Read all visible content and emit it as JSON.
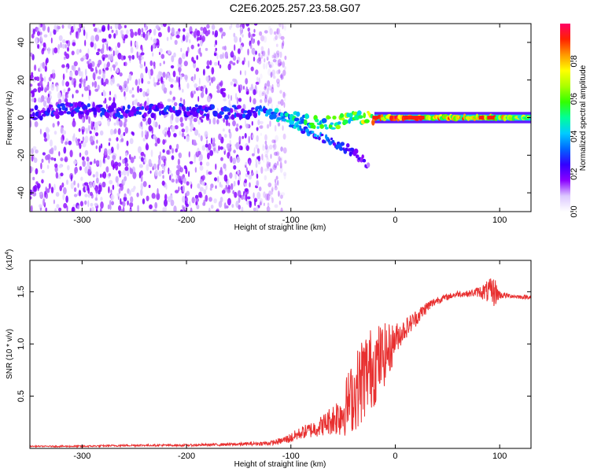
{
  "figure_title": "C2E6.2025.257.23.58.G07",
  "chart_data": [
    {
      "type": "heatmap",
      "title": "C2E6.2025.257.23.58.G07",
      "xlabel": "Height of straight line (km)",
      "ylabel": "Frequency (Hz)",
      "xlim": [
        -350,
        130
      ],
      "ylim": [
        -50,
        50
      ],
      "xticks": [
        -300,
        -200,
        -100,
        0,
        100
      ],
      "yticks": [
        -40,
        -20,
        0,
        20,
        40
      ],
      "colorbar": {
        "label": "Normalized spectral amplitude",
        "range": [
          0,
          1
        ],
        "ticks": [
          0.0,
          0.2,
          0.4,
          0.6,
          0.8
        ],
        "colors": [
          "#ffffff",
          "#dcc8ff",
          "#8a00ff",
          "#3300ff",
          "#0066ff",
          "#00ccff",
          "#00ff99",
          "#33ff00",
          "#aaff00",
          "#ffff00",
          "#ff9900",
          "#ff2200",
          "#ff0066"
        ]
      },
      "description_series": [
        {
          "name": "noise_region",
          "x_range": [
            -350,
            -120
          ],
          "freq_spread": [
            -50,
            50
          ],
          "amplitude": 0.15
        },
        {
          "name": "signal_centerline",
          "x": [
            -350,
            -300,
            -250,
            -200,
            -150,
            -120,
            -100,
            -80,
            -60,
            -40,
            -25,
            -10,
            0,
            25,
            50,
            75,
            100,
            130
          ],
          "freq": [
            2,
            5,
            3,
            4,
            3,
            2,
            0,
            -2,
            -3,
            0,
            0,
            0,
            0,
            0,
            0,
            0,
            0,
            0
          ],
          "amplitude": [
            0.25,
            0.3,
            0.28,
            0.3,
            0.3,
            0.4,
            0.5,
            0.55,
            0.6,
            0.7,
            0.85,
            0.9,
            0.95,
            0.9,
            0.85,
            0.85,
            0.9,
            0.7
          ]
        },
        {
          "name": "descending_branch",
          "x": [
            -100,
            -80,
            -60,
            -40,
            -30,
            -25
          ],
          "freq": [
            -3,
            -8,
            -13,
            -18,
            -23,
            -28
          ],
          "amplitude": [
            0.4,
            0.35,
            0.3,
            0.25,
            0.2,
            0.15
          ]
        }
      ]
    },
    {
      "type": "line",
      "xlabel": "Height of straight line (km)",
      "ylabel": "SNR (10 * v/v)",
      "multiplier_label": "(x10",
      "multiplier_exp": "4",
      "multiplier_close": ")",
      "xlim": [
        -350,
        130
      ],
      "ylim": [
        0,
        1.8
      ],
      "xticks": [
        -300,
        -200,
        -100,
        0,
        100
      ],
      "yticks": [
        0.5,
        1.0,
        1.5
      ],
      "ytick_labels": [
        "0.5",
        "1.0",
        "1.5"
      ],
      "series": [
        {
          "name": "SNR",
          "color": "#e83030",
          "x": [
            -350,
            -300,
            -250,
            -200,
            -150,
            -120,
            -110,
            -100,
            -90,
            -80,
            -70,
            -60,
            -50,
            -45,
            -40,
            -35,
            -30,
            -25,
            -20,
            -15,
            -10,
            -5,
            0,
            10,
            20,
            30,
            40,
            50,
            60,
            70,
            80,
            90,
            95,
            100,
            110,
            120,
            130
          ],
          "y": [
            0.02,
            0.02,
            0.03,
            0.03,
            0.04,
            0.05,
            0.07,
            0.1,
            0.15,
            0.18,
            0.22,
            0.28,
            0.35,
            0.45,
            0.5,
            0.6,
            0.7,
            0.75,
            0.8,
            0.85,
            0.9,
            0.95,
            1.05,
            1.15,
            1.25,
            1.35,
            1.42,
            1.45,
            1.48,
            1.48,
            1.5,
            1.5,
            1.5,
            1.47,
            1.46,
            1.45,
            1.45
          ],
          "noise_amp": [
            0.005,
            0.008,
            0.01,
            0.01,
            0.015,
            0.02,
            0.03,
            0.05,
            0.06,
            0.08,
            0.1,
            0.15,
            0.25,
            0.3,
            0.35,
            0.4,
            0.45,
            0.4,
            0.4,
            0.35,
            0.3,
            0.25,
            0.15,
            0.1,
            0.08,
            0.06,
            0.04,
            0.03,
            0.03,
            0.03,
            0.05,
            0.12,
            0.15,
            0.04,
            0.02,
            0.02,
            0.02
          ]
        }
      ]
    }
  ]
}
